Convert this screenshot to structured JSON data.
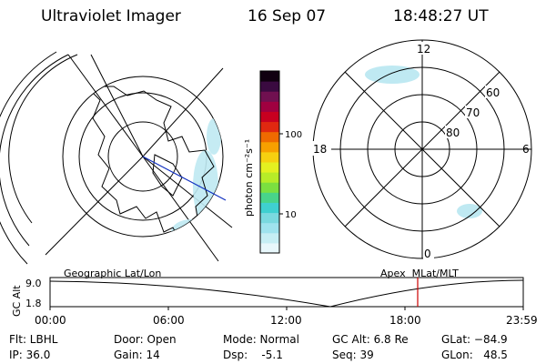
{
  "header": {
    "title": "Ultraviolet Imager",
    "date": "16 Sep 07",
    "time": "18:48:27 UT"
  },
  "colorbar": {
    "unit_label": "photon cm⁻²s⁻¹",
    "tick_100": "100",
    "tick_10": "10",
    "colors": [
      "#e8f7fb",
      "#c6eef4",
      "#9fe3ee",
      "#7ad9df",
      "#3fd0d0",
      "#48d48a",
      "#7be040",
      "#b7ec28",
      "#e4f020",
      "#f6d010",
      "#f7a000",
      "#ef6a00",
      "#e02810",
      "#c80020",
      "#a00040",
      "#701050",
      "#3a0a40",
      "#100010"
    ]
  },
  "left_map": {
    "projection_label": "Geographic Lat/Lon"
  },
  "right_map": {
    "projection_label": "Apex  MLat/MLT",
    "mlt_12": "12",
    "mlt_18": "18",
    "mlt_6": "6",
    "mlt_0": "0",
    "lat_60": "60",
    "lat_70": "70",
    "lat_80": "80"
  },
  "altitude_plot": {
    "axis_label": "GC Alt",
    "tick_top": "9.0",
    "tick_bottom": "1.8",
    "time_ticks": [
      "00:00",
      "06:00",
      "12:00",
      "18:00",
      "23:59"
    ],
    "marker_color": "#cc0000"
  },
  "status": {
    "filter": "Flt: LBHL",
    "ip": "IP: 36.0",
    "door": "Door: Open",
    "gain": "Gain: 14",
    "mode": "Mode: Normal",
    "dsp": "Dsp:    -5.1",
    "gc_alt": "GC Alt: 6.8 Re",
    "seq": "Seq: 39",
    "glat": "GLat: −84.9",
    "glon": "GLon:   48.5"
  }
}
